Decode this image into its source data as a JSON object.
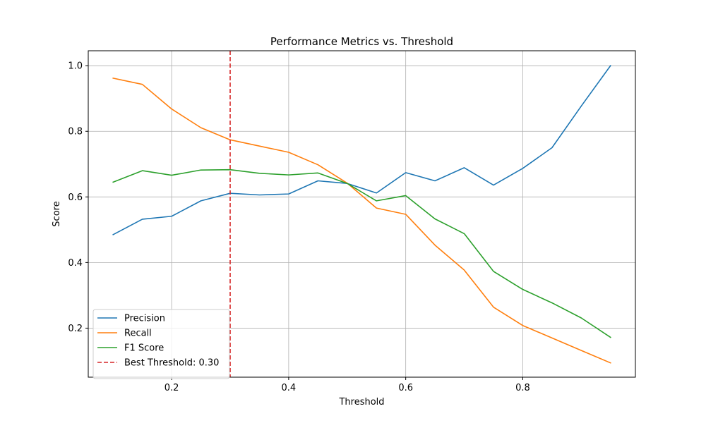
{
  "chart_data": {
    "type": "line",
    "title": "Performance Metrics vs. Threshold",
    "xlabel": "Threshold",
    "ylabel": "Score",
    "xlim": [
      0.0575,
      0.9925
    ],
    "ylim": [
      0.0505,
      1.0455
    ],
    "xticks": [
      0.2,
      0.4,
      0.6,
      0.8
    ],
    "yticks": [
      0.2,
      0.4,
      0.6,
      0.8,
      1.0
    ],
    "grid": true,
    "legend_position": "lower-left",
    "x": [
      0.1,
      0.15,
      0.2,
      0.25,
      0.3,
      0.35,
      0.4,
      0.45,
      0.5,
      0.55,
      0.6,
      0.65,
      0.7,
      0.75,
      0.8,
      0.85,
      0.9,
      0.95
    ],
    "series": [
      {
        "name": "Precision",
        "color": "#1f77b4",
        "values": [
          0.485,
          0.532,
          0.541,
          0.588,
          0.611,
          0.606,
          0.609,
          0.649,
          0.641,
          0.612,
          0.674,
          0.649,
          0.689,
          0.636,
          0.687,
          0.75,
          0.877,
          1.0
        ]
      },
      {
        "name": "Recall",
        "color": "#ff7f0e",
        "values": [
          0.962,
          0.943,
          0.868,
          0.811,
          0.774,
          0.755,
          0.736,
          0.698,
          0.642,
          0.566,
          0.547,
          0.453,
          0.377,
          0.264,
          0.208,
          0.17,
          0.132,
          0.094
        ]
      },
      {
        "name": "F1 Score",
        "color": "#2ca02c",
        "values": [
          0.645,
          0.68,
          0.666,
          0.682,
          0.683,
          0.672,
          0.667,
          0.673,
          0.641,
          0.588,
          0.604,
          0.533,
          0.488,
          0.373,
          0.318,
          0.277,
          0.231,
          0.172
        ]
      }
    ],
    "vline": {
      "x": 0.3,
      "label": "Best Threshold: 0.30",
      "color": "#d62728",
      "style": "dashed"
    }
  }
}
